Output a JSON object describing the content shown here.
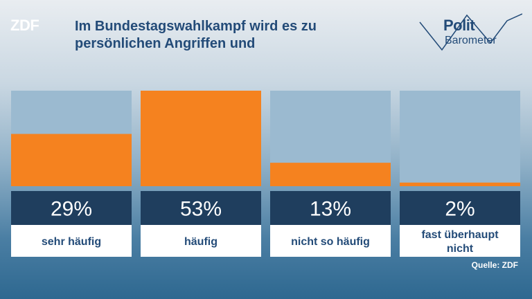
{
  "header": {
    "brand": "ZDF",
    "title": "Im Bundestagswahlkampf wird es zu persönlichen Angriffen und",
    "logo_top": "Polit",
    "logo_bottom": "Barometer"
  },
  "source": "Quelle: ZDF",
  "colors": {
    "bar": "#f5821f",
    "track": "#9bbad0",
    "value_box": "#1f3e5e",
    "label_box": "#ffffff",
    "title": "#234b78"
  },
  "chart_data": {
    "type": "bar",
    "categories": [
      "sehr häufig",
      "häufig",
      "nicht so häufig",
      "fast überhaupt nicht"
    ],
    "values": [
      29,
      53,
      13,
      2
    ],
    "value_labels": [
      "29%",
      "53%",
      "13%",
      "2%"
    ],
    "ylim": [
      0,
      53
    ],
    "title": "Im Bundestagswahlkampf wird es zu persönlichen Angriffen und"
  }
}
